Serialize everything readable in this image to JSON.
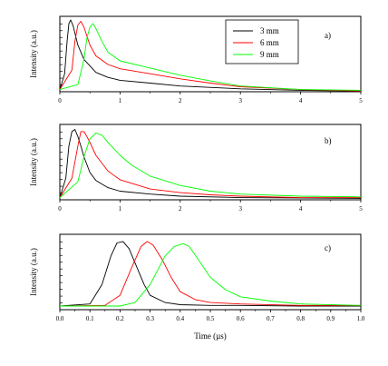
{
  "chart_data": [
    {
      "type": "line",
      "panel_label": "a)",
      "xlabel": "",
      "ylabel": "Intensity (a.u.)",
      "xlim": [
        0,
        5
      ],
      "xticks": [
        "0",
        "1",
        "2",
        "3",
        "4",
        "5"
      ],
      "legend": {
        "placement": "top-right",
        "entries": [
          "3 mm",
          "6 mm",
          "9 mm"
        ]
      },
      "series": [
        {
          "name": "3 mm",
          "color": "#000000",
          "x": [
            0,
            0.08,
            0.12,
            0.15,
            0.18,
            0.22,
            0.3,
            0.4,
            0.6,
            0.8,
            1.0,
            1.5,
            2.0,
            3.0,
            4.0,
            5.0
          ],
          "y": [
            0.03,
            0.25,
            0.7,
            0.95,
            1.0,
            0.92,
            0.65,
            0.45,
            0.27,
            0.2,
            0.16,
            0.12,
            0.08,
            0.04,
            0.02,
            0.01
          ]
        },
        {
          "name": "6 mm",
          "color": "#ff0000",
          "x": [
            0,
            0.2,
            0.25,
            0.3,
            0.35,
            0.4,
            0.5,
            0.6,
            0.8,
            1.0,
            1.5,
            2.0,
            2.5,
            3.0,
            4.0,
            5.0
          ],
          "y": [
            0.03,
            0.3,
            0.7,
            0.93,
            0.98,
            0.9,
            0.65,
            0.5,
            0.38,
            0.32,
            0.25,
            0.18,
            0.12,
            0.07,
            0.03,
            0.01
          ]
        },
        {
          "name": "9 mm",
          "color": "#00ff00",
          "x": [
            0,
            0.3,
            0.4,
            0.45,
            0.5,
            0.55,
            0.6,
            0.7,
            0.8,
            1.0,
            1.5,
            2.0,
            2.5,
            3.0,
            4.0,
            5.0
          ],
          "y": [
            0.03,
            0.1,
            0.45,
            0.75,
            0.9,
            0.95,
            0.88,
            0.7,
            0.55,
            0.43,
            0.33,
            0.23,
            0.15,
            0.08,
            0.03,
            0.02
          ]
        }
      ]
    },
    {
      "type": "line",
      "panel_label": "b)",
      "xlabel": "",
      "ylabel": "Intensity (a.u.)",
      "xlim": [
        0,
        5
      ],
      "xticks": [
        "0",
        "1",
        "2",
        "3",
        "4",
        "5"
      ],
      "series": [
        {
          "name": "3 mm",
          "color": "#000000",
          "x": [
            0,
            0.1,
            0.15,
            0.2,
            0.25,
            0.3,
            0.35,
            0.4,
            0.5,
            0.6,
            0.8,
            1.0,
            1.5,
            2.0,
            3.0,
            5.0
          ],
          "y": [
            0.03,
            0.3,
            0.75,
            0.95,
            0.98,
            0.88,
            0.75,
            0.6,
            0.38,
            0.27,
            0.17,
            0.12,
            0.08,
            0.05,
            0.03,
            0.02
          ]
        },
        {
          "name": "6 mm",
          "color": "#ff0000",
          "x": [
            0,
            0.2,
            0.3,
            0.35,
            0.4,
            0.45,
            0.5,
            0.6,
            0.8,
            1.0,
            1.5,
            2.0,
            2.5,
            3.0,
            4.0,
            5.0
          ],
          "y": [
            0.03,
            0.3,
            0.75,
            0.95,
            0.95,
            0.88,
            0.8,
            0.62,
            0.4,
            0.28,
            0.15,
            0.1,
            0.07,
            0.05,
            0.03,
            0.03
          ]
        },
        {
          "name": "9 mm",
          "color": "#00ff00",
          "x": [
            0,
            0.3,
            0.4,
            0.5,
            0.6,
            0.7,
            0.8,
            1.0,
            1.2,
            1.5,
            2.0,
            2.5,
            3.0,
            4.0,
            5.0
          ],
          "y": [
            0.03,
            0.25,
            0.6,
            0.85,
            0.93,
            0.9,
            0.8,
            0.62,
            0.48,
            0.33,
            0.2,
            0.12,
            0.08,
            0.05,
            0.04
          ]
        }
      ]
    },
    {
      "type": "line",
      "panel_label": "c)",
      "xlabel": "Time (µs)",
      "ylabel": "Intensity (a.u.)",
      "xlim": [
        0,
        1.0
      ],
      "xticks": [
        "0.0",
        "0.1",
        "0.2",
        "0.3",
        "0.4",
        "0.5",
        "0.6",
        "0.7",
        "0.8",
        "0.9",
        "1.0"
      ],
      "series": [
        {
          "name": "3 mm",
          "color": "#000000",
          "x": [
            0,
            0.1,
            0.14,
            0.17,
            0.19,
            0.21,
            0.23,
            0.25,
            0.28,
            0.3,
            0.35,
            0.4,
            0.5,
            0.6,
            0.8,
            1.0
          ],
          "y": [
            0.05,
            0.08,
            0.35,
            0.75,
            0.93,
            0.95,
            0.85,
            0.65,
            0.35,
            0.2,
            0.1,
            0.07,
            0.06,
            0.06,
            0.05,
            0.05
          ]
        },
        {
          "name": "6 mm",
          "color": "#ff0000",
          "x": [
            0,
            0.15,
            0.2,
            0.24,
            0.27,
            0.29,
            0.31,
            0.34,
            0.37,
            0.4,
            0.45,
            0.5,
            0.6,
            0.8,
            1.0
          ],
          "y": [
            0.05,
            0.06,
            0.2,
            0.6,
            0.88,
            0.95,
            0.9,
            0.7,
            0.45,
            0.25,
            0.14,
            0.1,
            0.08,
            0.06,
            0.06
          ]
        },
        {
          "name": "9 mm",
          "color": "#00ff00",
          "x": [
            0,
            0.2,
            0.25,
            0.3,
            0.35,
            0.38,
            0.41,
            0.43,
            0.46,
            0.5,
            0.55,
            0.6,
            0.7,
            0.8,
            1.0
          ],
          "y": [
            0.05,
            0.05,
            0.1,
            0.35,
            0.75,
            0.88,
            0.92,
            0.88,
            0.7,
            0.45,
            0.28,
            0.18,
            0.12,
            0.08,
            0.06
          ]
        }
      ]
    }
  ]
}
